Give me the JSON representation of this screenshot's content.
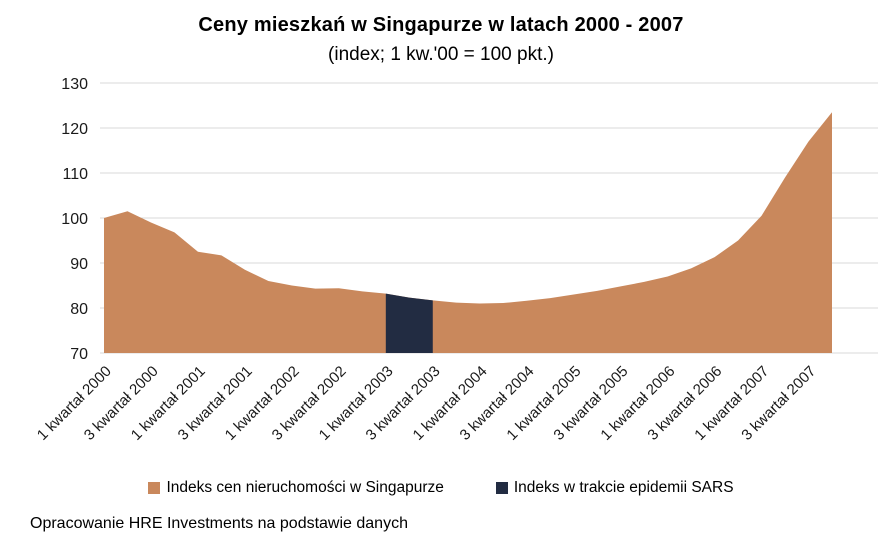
{
  "title": "Ceny mieszkań w Singapurze w latach 2000 - 2007",
  "subtitle": "(index; 1 kw.'00 = 100 pkt.)",
  "source_note": "Opracowanie HRE Investments na podstawie danych",
  "legend": [
    {
      "label": "Indeks cen nieruchomości w Singapurze",
      "color": "#C9885C",
      "swatch": "orange-square"
    },
    {
      "label": "Indeks w trakcie epidemii SARS",
      "color": "#222C42",
      "swatch": "navy-square"
    }
  ],
  "chart_data": {
    "type": "area",
    "title": "Ceny mieszkań w Singapurze w latach 2000 - 2007",
    "subtitle": "(index; 1 kw.'00 = 100 pkt.)",
    "x": [
      "1 kwartał 2000",
      "2 kwartał 2000",
      "3 kwartał 2000",
      "4 kwartał 2000",
      "1 kwartał 2001",
      "2 kwartał 2001",
      "3 kwartał 2001",
      "4 kwartał 2001",
      "1 kwartał 2002",
      "2 kwartał 2002",
      "3 kwartał 2002",
      "4 kwartał 2002",
      "1 kwartał 2003",
      "2 kwartał 2003",
      "3 kwartał 2003",
      "4 kwartał 2003",
      "1 kwartał 2004",
      "2 kwartał 2004",
      "3 kwartał 2004",
      "4 kwartał 2004",
      "1 kwartał 2005",
      "2 kwartał 2005",
      "3 kwartał 2005",
      "4 kwartał 2005",
      "1 kwartał 2006",
      "2 kwartał 2006",
      "3 kwartał 2006",
      "4 kwartał 2006",
      "1 kwartał 2007",
      "2 kwartał 2007",
      "3 kwartał 2007",
      "4 kwartał 2007"
    ],
    "series": [
      {
        "name": "Indeks cen nieruchomości w Singapurze",
        "values": [
          100,
          101.5,
          99,
          96.8,
          92.5,
          91.7,
          88.5,
          86,
          85,
          84.3,
          84.4,
          83.7,
          83.2,
          82.3,
          81.7,
          81.2,
          81,
          81.1,
          81.6,
          82.2,
          83,
          83.8,
          84.8,
          85.8,
          87,
          88.8,
          91.3,
          95,
          100.5,
          109,
          117,
          123.5
        ]
      }
    ],
    "highlight": {
      "name": "Indeks w trakcie epidemii SARS",
      "from": "1 kwartał 2003",
      "to": "3 kwartał 2003",
      "from_index": 12,
      "to_index": 14
    },
    "x_tick_labels": [
      "1 kwartał 2000",
      "3 kwartał 2000",
      "1 kwartał 2001",
      "3 kwartał 2001",
      "1 kwartał 2002",
      "3 kwartał 2002",
      "1 kwartał 2003",
      "3 kwartał 2003",
      "1 kwartał 2004",
      "3 kwartał 2004",
      "1 kwartał 2005",
      "3 kwartał 2005",
      "1 kwartał 2006",
      "3 kwartał 2006",
      "1 kwartał 2007",
      "3 kwartał 2007"
    ],
    "ylim": [
      70,
      130
    ],
    "y_ticks": [
      70,
      80,
      90,
      100,
      110,
      120,
      130
    ],
    "grid": "horizontal",
    "legend_position": "bottom",
    "colors": {
      "area": "#C9885C",
      "sars": "#222C42",
      "grid": "#D9D9D9",
      "text": "#1a1a1a"
    }
  }
}
